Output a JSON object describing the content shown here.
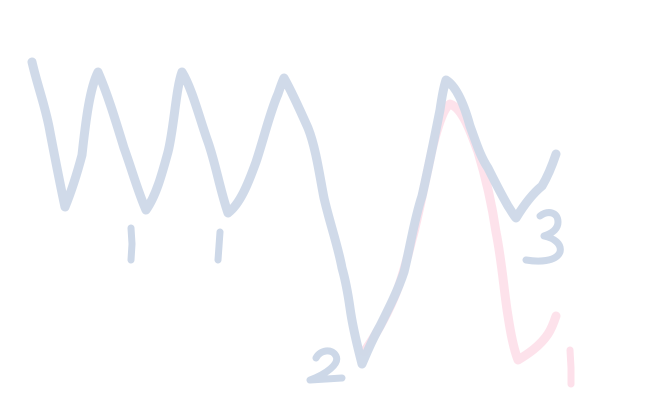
{
  "colors": {
    "background": "#ffffff",
    "blue_ink": "#cdd8e8",
    "pink_ink": "#fde0ea"
  },
  "labels": [
    {
      "id": "label-1a",
      "text": "1",
      "ink": "blue"
    },
    {
      "id": "label-1b",
      "text": "1",
      "ink": "blue"
    },
    {
      "id": "label-2",
      "text": "2",
      "ink": "blue"
    },
    {
      "id": "label-3",
      "text": "3",
      "ink": "blue"
    },
    {
      "id": "label-1c",
      "text": "1",
      "ink": "pink"
    }
  ],
  "strokes": [
    {
      "id": "blue-wave",
      "ink": "blue"
    },
    {
      "id": "pink-wave",
      "ink": "pink"
    }
  ]
}
